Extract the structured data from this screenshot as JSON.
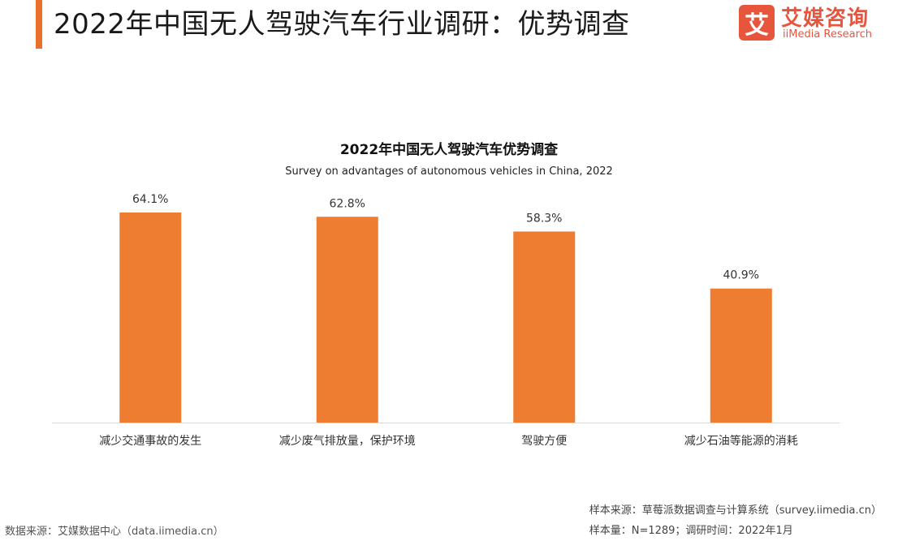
{
  "header": {
    "title": "2022年中国无人驾驶汽车行业调研：优势调查",
    "logo_mark": "艾",
    "logo_cn": "艾媒咨询",
    "logo_en": "iiMedia Research"
  },
  "chart_data": {
    "type": "bar",
    "title": "2022年中国无人驾驶汽车优势调查",
    "subtitle": "Survey on advantages of autonomous vehicles in China, 2022",
    "categories": [
      "减少交通事故的发生",
      "减少废气排放量，保护环境",
      "驾驶方便",
      "减少石油等能源的消耗"
    ],
    "values": [
      64.1,
      62.8,
      58.3,
      40.9
    ],
    "value_labels": [
      "64.1%",
      "62.8%",
      "58.3%",
      "40.9%"
    ],
    "ylim": [
      0,
      64.1
    ],
    "bar_color": "#ee7d31",
    "axis_color": "#d9d9d9",
    "grid": false,
    "legend": "none"
  },
  "footer": {
    "source": "数据来源：艾媒数据中心（data.iimedia.cn）",
    "sample_source": "样本来源：草莓派数据调查与计算系统（survey.iimedia.cn）",
    "sample_size": "样本量：N=1289；调研时间：2022年1月"
  }
}
